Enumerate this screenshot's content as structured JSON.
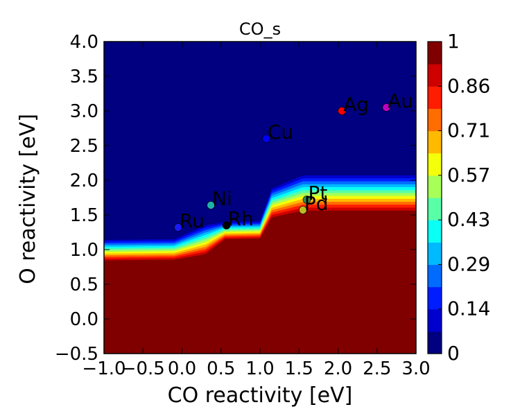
{
  "chart_data": {
    "type": "heatmap",
    "title": "CO_s",
    "xlabel": "CO reactivity [eV]",
    "ylabel": "O reactivity [eV]",
    "xlim": [
      -1.0,
      3.0
    ],
    "ylim": [
      -0.5,
      4.0
    ],
    "x_ticks": [
      "-1.0",
      "-0.5",
      "0.0",
      "0.5",
      "1.0",
      "1.5",
      "2.0",
      "2.5",
      "3.0"
    ],
    "y_ticks": [
      "-0.5",
      "0.0",
      "0.5",
      "1.0",
      "1.5",
      "2.0",
      "2.5",
      "3.0",
      "3.5",
      "4.0"
    ],
    "colorbar": {
      "range": [
        0,
        1
      ],
      "tick_labels": [
        "0",
        "0.14",
        "0.29",
        "0.43",
        "0.57",
        "0.71",
        "0.86",
        "1"
      ],
      "tick_values": [
        0,
        0.142857,
        0.285714,
        0.428571,
        0.571429,
        0.714286,
        0.857143,
        1.0
      ],
      "levels": 14,
      "colormap": "jet"
    },
    "boundary_x": [
      -1.0,
      -0.9,
      -0.1,
      0.3,
      0.55,
      1.0,
      1.15,
      1.55,
      3.0
    ],
    "boundary_y": [
      0.82,
      0.82,
      0.83,
      0.9,
      1.13,
      1.14,
      1.43,
      1.52,
      1.52
    ],
    "transition_width": [
      0.32,
      0.32,
      0.32,
      0.45,
      0.27,
      0.27,
      0.45,
      0.55,
      0.55
    ],
    "points": [
      {
        "label": "Ag",
        "x": 2.05,
        "y": 3.0,
        "color": "#ff0000"
      },
      {
        "label": "Au",
        "x": 2.62,
        "y": 3.05,
        "color": "#c000c0"
      },
      {
        "label": "Cu",
        "x": 1.08,
        "y": 2.6,
        "color": "#0000ff"
      },
      {
        "label": "Pt",
        "x": 1.6,
        "y": 1.72,
        "color": "#2e8b57"
      },
      {
        "label": "Pd",
        "x": 1.55,
        "y": 1.57,
        "color": "#bcbc20"
      },
      {
        "label": "Ni",
        "x": 0.37,
        "y": 1.64,
        "color": "#20b2aa"
      },
      {
        "label": "Rh",
        "x": 0.57,
        "y": 1.35,
        "color": "#000000"
      },
      {
        "label": "Ru",
        "x": -0.05,
        "y": 1.32,
        "color": "#1a1aff"
      }
    ]
  }
}
